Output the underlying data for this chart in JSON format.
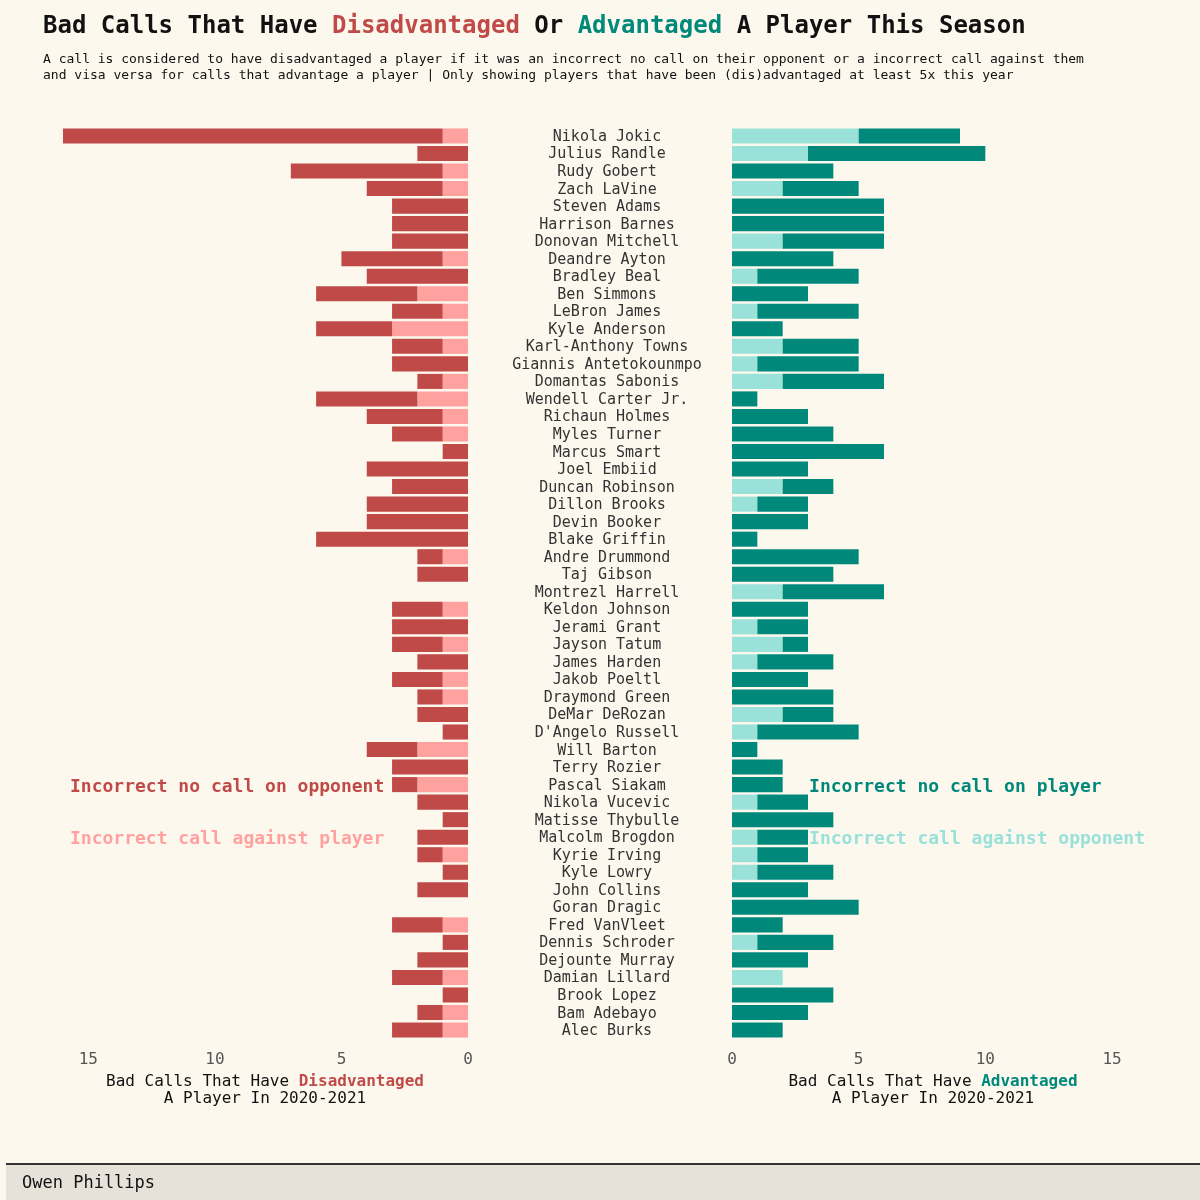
{
  "chart_data": [
    {
      "type": "bar",
      "orientation": "horizontal",
      "stacked": true,
      "title": "Bad Calls That Have Disadvantaged Or Advantaged A Player This Season",
      "subtitle": "A call is considered to have disadvantaged a player if it was an incorrect no call on their opponent or a incorrect call against them and visa versa for calls that advantage a player | Only showing players that have been (dis)advantaged at least 5x this year",
      "xlabel": "Bad Calls That Have Disadvantaged\nA Player In 2020-2021",
      "annotations": [
        "Owen Phillips"
      ],
      "categories": [
        "Nikola Jokic",
        "Julius Randle",
        "Rudy Gobert",
        "Zach LaVine",
        "Steven Adams",
        "Harrison Barnes",
        "Donovan Mitchell",
        "Deandre Ayton",
        "Bradley Beal",
        "Ben Simmons",
        "LeBron James",
        "Kyle Anderson",
        "Karl-Anthony Towns",
        "Giannis Antetokounmpo",
        "Domantas Sabonis",
        "Wendell Carter Jr.",
        "Richaun Holmes",
        "Myles Turner",
        "Marcus Smart",
        "Joel Embiid",
        "Duncan Robinson",
        "Dillon Brooks",
        "Devin Booker",
        "Blake Griffin",
        "Andre Drummond",
        "Taj Gibson",
        "Montrezl Harrell",
        "Keldon Johnson",
        "Jerami Grant",
        "Jayson Tatum",
        "James Harden",
        "Jakob Poeltl",
        "Draymond Green",
        "DeMar DeRozan",
        "D'Angelo Russell",
        "Will Barton",
        "Terry Rozier",
        "Pascal Siakam",
        "Nikola Vucevic",
        "Matisse Thybulle",
        "Malcolm Brogdon",
        "Kyrie Irving",
        "Kyle Lowry",
        "John Collins",
        "Goran Dragic",
        "Fred VanVleet",
        "Dennis Schroder",
        "Dejounte Murray",
        "Damian Lillard",
        "Brook Lopez",
        "Bam Adebayo",
        "Alec Burks"
      ],
      "series": [
        {
          "name": "Incorrect call against player",
          "color": "#ffa19f",
          "values": [
            1,
            0,
            1,
            1,
            0,
            0,
            0,
            1,
            0,
            2,
            1,
            3,
            1,
            0,
            1,
            2,
            1,
            1,
            0,
            0,
            0,
            0,
            0,
            0,
            1,
            0,
            0,
            1,
            0,
            1,
            0,
            1,
            1,
            0,
            0,
            2,
            0,
            2,
            0,
            0,
            0,
            1,
            0,
            0,
            0,
            1,
            0,
            0,
            1,
            0,
            1,
            1
          ]
        },
        {
          "name": "Incorrect no call on opponent",
          "color": "#bf4a48",
          "values": [
            15,
            2,
            6,
            3,
            3,
            3,
            3,
            4,
            4,
            4,
            2,
            3,
            2,
            3,
            1,
            4,
            3,
            2,
            1,
            4,
            3,
            4,
            4,
            6,
            1,
            2,
            0,
            2,
            3,
            2,
            2,
            2,
            1,
            2,
            1,
            2,
            3,
            1,
            2,
            1,
            2,
            1,
            1,
            2,
            0,
            2,
            1,
            2,
            2,
            1,
            1,
            2
          ]
        }
      ],
      "xlim": [
        16,
        0
      ],
      "xticks": [
        15,
        10,
        5,
        0
      ],
      "legend": "left"
    },
    {
      "type": "bar",
      "orientation": "horizontal",
      "stacked": true,
      "xlabel": "Bad Calls That Have Advantaged\nA Player In 2020-2021",
      "tick_labels": "x",
      "categories": [
        null,
        null,
        null,
        null,
        null,
        null,
        null,
        null,
        null,
        null,
        null,
        null,
        null,
        null,
        null,
        null,
        null,
        null,
        null,
        null,
        null,
        null,
        null,
        null,
        null,
        null,
        null,
        null,
        null,
        null,
        null,
        null,
        null,
        null,
        null,
        null,
        null,
        null,
        null,
        null,
        null,
        null,
        null,
        null,
        null,
        null,
        null,
        null,
        null,
        null,
        null,
        null
      ],
      "series": [
        {
          "name": "Incorrect call against opponent",
          "color": "#99e1d9",
          "values": [
            5,
            3,
            0,
            2,
            0,
            0,
            2,
            0,
            1,
            0,
            1,
            0,
            2,
            1,
            2,
            0,
            0,
            0,
            0,
            0,
            2,
            1,
            0,
            0,
            0,
            0,
            2,
            0,
            1,
            2,
            1,
            0,
            0,
            2,
            1,
            0,
            0,
            0,
            1,
            0,
            1,
            1,
            1,
            0,
            0,
            0,
            1,
            0,
            2,
            0,
            0,
            0
          ]
        },
        {
          "name": "Incorrect no call on player",
          "color": "#00897b",
          "values": [
            4,
            7,
            4,
            3,
            6,
            6,
            4,
            4,
            4,
            3,
            4,
            2,
            3,
            4,
            4,
            1,
            3,
            4,
            6,
            3,
            2,
            2,
            3,
            1,
            5,
            4,
            4,
            3,
            2,
            1,
            3,
            3,
            4,
            2,
            4,
            1,
            2,
            2,
            2,
            4,
            2,
            2,
            3,
            3,
            5,
            2,
            3,
            3,
            0,
            4,
            3,
            2
          ]
        }
      ],
      "xlim": [
        0,
        15
      ],
      "xticks": [
        0,
        5,
        10,
        15
      ],
      "legend": "right"
    }
  ]
}
